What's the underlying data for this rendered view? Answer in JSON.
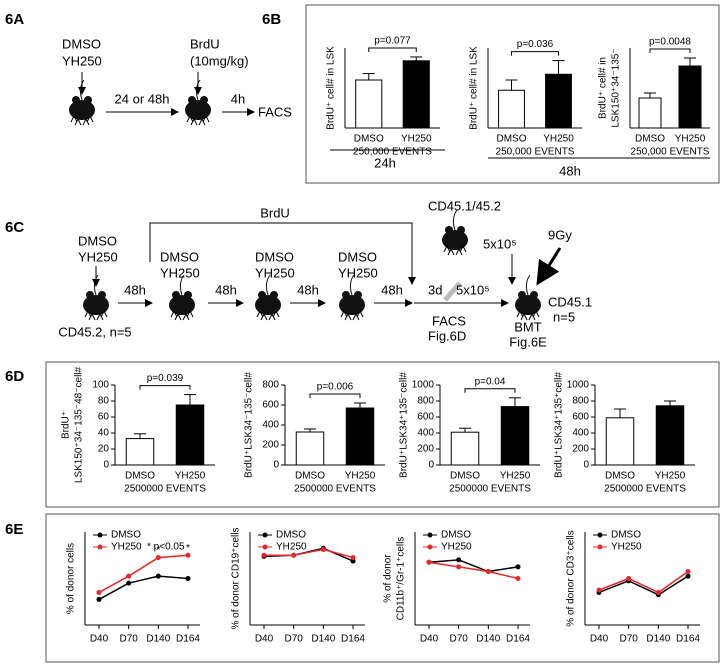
{
  "panel_labels": {
    "a": "6A",
    "b": "6B",
    "c": "6C",
    "d": "6D",
    "e": "6E"
  },
  "diagram_a": {
    "treatment": [
      "DMSO",
      "YH250"
    ],
    "pulse": [
      "BrdU",
      "(10mg/kg)"
    ],
    "interval": "24 or 48h",
    "chase": "4h",
    "readout": "FACS"
  },
  "panel_b_times": [
    "24h",
    "48h"
  ],
  "diagram_c": {
    "pulse": "BrdU",
    "treatment": [
      "DMSO",
      "YH250"
    ],
    "interval": "48h",
    "rest": "3d",
    "donor_cells": "5x10⁵",
    "competitor": "CD45.1/45.2",
    "irradiation": "9Gy",
    "recipient": [
      "CD45.1",
      "n=5"
    ],
    "donor": "CD45.2, n=5",
    "facs": [
      "FACS",
      "Fig.6D"
    ],
    "bmt": [
      "BMT",
      "Fig.6E"
    ]
  },
  "chart_data": [
    {
      "type": "bar",
      "ylabel": "BrdU⁺ cell# in LSK",
      "categories": [
        "DMSO",
        "YH250"
      ],
      "values": [
        150,
        210
      ],
      "errors": [
        20,
        12
      ],
      "bar_colors": [
        "#ffffff",
        "#000000"
      ],
      "ylim": [
        0,
        250
      ],
      "annotation": "p=0.077",
      "sublabel": "250,000 EVENTS"
    },
    {
      "type": "bar",
      "ylabel": "BrdU⁺ cell# in LSK",
      "categories": [
        "DMSO",
        "YH250"
      ],
      "values": [
        165,
        235
      ],
      "errors": [
        45,
        60
      ],
      "bar_colors": [
        "#ffffff",
        "#000000"
      ],
      "ylim": [
        0,
        350
      ],
      "annotation": "p=0.036",
      "sublabel": "250,000 EVENTS"
    },
    {
      "type": "bar",
      "ylabel": [
        "BrdU⁺ cell# in",
        "LSK150⁺34⁻135⁻"
      ],
      "categories": [
        "DMSO",
        "YH250"
      ],
      "values": [
        30,
        62
      ],
      "errors": [
        5,
        8
      ],
      "bar_colors": [
        "#ffffff",
        "#000000"
      ],
      "ylim": [
        0,
        80
      ],
      "annotation": "p=0.0048",
      "sublabel": "250,000 EVENTS"
    },
    {
      "type": "bar",
      "ylabel": [
        "BrdU⁺",
        "LSK150⁺34⁻135⁻48⁻cell#"
      ],
      "categories": [
        "DMSO",
        "YH250"
      ],
      "values": [
        33,
        75
      ],
      "errors": [
        6,
        13
      ],
      "bar_colors": [
        "#ffffff",
        "#000000"
      ],
      "ylim": [
        0,
        100
      ],
      "yticks": [
        0,
        20,
        40,
        60,
        80,
        100
      ],
      "annotation": "p=0.039",
      "sublabel": "2500000 EVENTS"
    },
    {
      "type": "bar",
      "ylabel": "BrdU⁺LSK34⁻135⁻cell#",
      "categories": [
        "DMSO",
        "YH250"
      ],
      "values": [
        330,
        570
      ],
      "errors": [
        30,
        50
      ],
      "bar_colors": [
        "#ffffff",
        "#000000"
      ],
      "ylim": [
        0,
        800
      ],
      "yticks": [
        0,
        200,
        400,
        600,
        800
      ],
      "annotation": "p=0.006",
      "sublabel": "2500000 EVENTS"
    },
    {
      "type": "bar",
      "ylabel": "BrdU⁺LSK34⁺135⁻cell#",
      "categories": [
        "DMSO",
        "YH250"
      ],
      "values": [
        410,
        730
      ],
      "errors": [
        50,
        110
      ],
      "bar_colors": [
        "#ffffff",
        "#000000"
      ],
      "ylim": [
        0,
        1000
      ],
      "yticks": [
        0,
        200,
        400,
        600,
        800,
        1000
      ],
      "annotation": "p=0.04",
      "sublabel": "2500000 EVENTS"
    },
    {
      "type": "bar",
      "ylabel": "BrdU⁺LSK34⁺135⁺cell#",
      "categories": [
        "DMSO",
        "YH250"
      ],
      "values": [
        590,
        740
      ],
      "errors": [
        110,
        60
      ],
      "bar_colors": [
        "#ffffff",
        "#000000"
      ],
      "ylim": [
        0,
        1000
      ],
      "yticks": [
        0,
        200,
        400,
        600,
        800,
        1000
      ],
      "sublabel": "2500000 EVENTS"
    },
    {
      "type": "line",
      "ylabel": "% of donor cells",
      "categories": [
        "D40",
        "D70",
        "D140",
        "D164"
      ],
      "series": [
        {
          "name": "DMSO",
          "color": "#000000",
          "values": [
            36,
            43,
            46,
            45
          ]
        },
        {
          "name": "YH250",
          "color": "#e8262a",
          "values": [
            39,
            46,
            54,
            55
          ]
        }
      ],
      "ylim": [
        25,
        65
      ],
      "annotation": "* p<0.05",
      "significance": [
        null,
        null,
        "*",
        "*"
      ]
    },
    {
      "type": "line",
      "ylabel": "% of donor  CD19⁺cells",
      "categories": [
        "D40",
        "D70",
        "D140",
        "D164"
      ],
      "series": [
        {
          "name": "DMSO",
          "color": "#000000",
          "values": [
            59,
            60,
            66,
            55
          ]
        },
        {
          "name": "YH250",
          "color": "#e8262a",
          "values": [
            60,
            60,
            65,
            58
          ]
        }
      ],
      "ylim": [
        0,
        80
      ]
    },
    {
      "type": "line",
      "ylabel": [
        "% of donor",
        "CD11b⁺/Gr-1⁺cells"
      ],
      "categories": [
        "D40",
        "D70",
        "D140",
        "D164"
      ],
      "series": [
        {
          "name": "DMSO",
          "color": "#000000",
          "values": [
            27,
            28,
            23,
            25
          ]
        },
        {
          "name": "YH250",
          "color": "#e8262a",
          "values": [
            27,
            25,
            23,
            20
          ]
        }
      ],
      "ylim": [
        0,
        40
      ]
    },
    {
      "type": "line",
      "ylabel": "% of donor  CD3⁺cells",
      "categories": [
        "D40",
        "D70",
        "D140",
        "D164"
      ],
      "series": [
        {
          "name": "DMSO",
          "color": "#000000",
          "values": [
            14,
            19,
            13,
            21
          ]
        },
        {
          "name": "YH250",
          "color": "#e8262a",
          "values": [
            15,
            20,
            14,
            23
          ]
        }
      ],
      "ylim": [
        0,
        40
      ]
    }
  ]
}
